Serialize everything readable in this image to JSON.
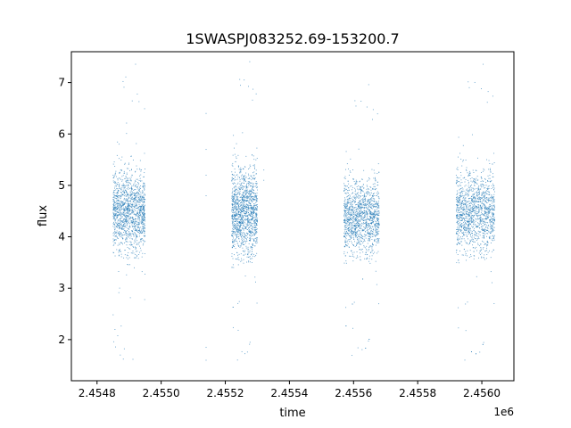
{
  "chart_data": {
    "type": "scatter",
    "title": "1SWASPJ083252.69-153200.7",
    "xlabel": "time",
    "ylabel": "flux",
    "x_offset_label": "1e6",
    "xlim": [
      2.45472,
      2.4561
    ],
    "ylim": [
      1.2,
      7.6
    ],
    "x_ticks": [
      2.4548,
      2.455,
      2.4552,
      2.4554,
      2.4556,
      2.4558,
      2.456
    ],
    "x_tick_labels": [
      "2.4548",
      "2.4550",
      "2.4552",
      "2.4554",
      "2.4556",
      "2.4558",
      "2.4560"
    ],
    "y_ticks": [
      2,
      3,
      4,
      5,
      6,
      7
    ],
    "y_tick_labels": [
      "2",
      "3",
      "4",
      "5",
      "6",
      "7"
    ],
    "grid": false,
    "series_color": "#1f77b4",
    "observing_seasons": [
      {
        "x_start": 2.45485,
        "x_end": 2.45495,
        "flux_center": 4.5,
        "flux_spread": 0.55,
        "flux_min": 1.6,
        "flux_max": 7.4
      },
      {
        "x_start": 2.45522,
        "x_end": 2.4553,
        "flux_center": 4.5,
        "flux_spread": 0.6,
        "flux_min": 1.5,
        "flux_max": 7.45
      },
      {
        "x_start": 2.45557,
        "x_end": 2.45568,
        "flux_center": 4.4,
        "flux_spread": 0.5,
        "flux_min": 1.6,
        "flux_max": 7.0
      },
      {
        "x_start": 2.45592,
        "x_end": 2.45604,
        "flux_center": 4.5,
        "flux_spread": 0.55,
        "flux_min": 1.5,
        "flux_max": 7.4
      }
    ],
    "isolated_points": [
      {
        "x": 2.45514,
        "y": 6.4
      },
      {
        "x": 2.45514,
        "y": 5.7
      },
      {
        "x": 2.45514,
        "y": 5.2
      },
      {
        "x": 2.45514,
        "y": 4.8
      },
      {
        "x": 2.45514,
        "y": 1.85
      },
      {
        "x": 2.45514,
        "y": 1.6
      },
      {
        "x": 2.45532,
        "y": 5.3
      },
      {
        "x": 2.45532,
        "y": 5.1
      }
    ]
  }
}
